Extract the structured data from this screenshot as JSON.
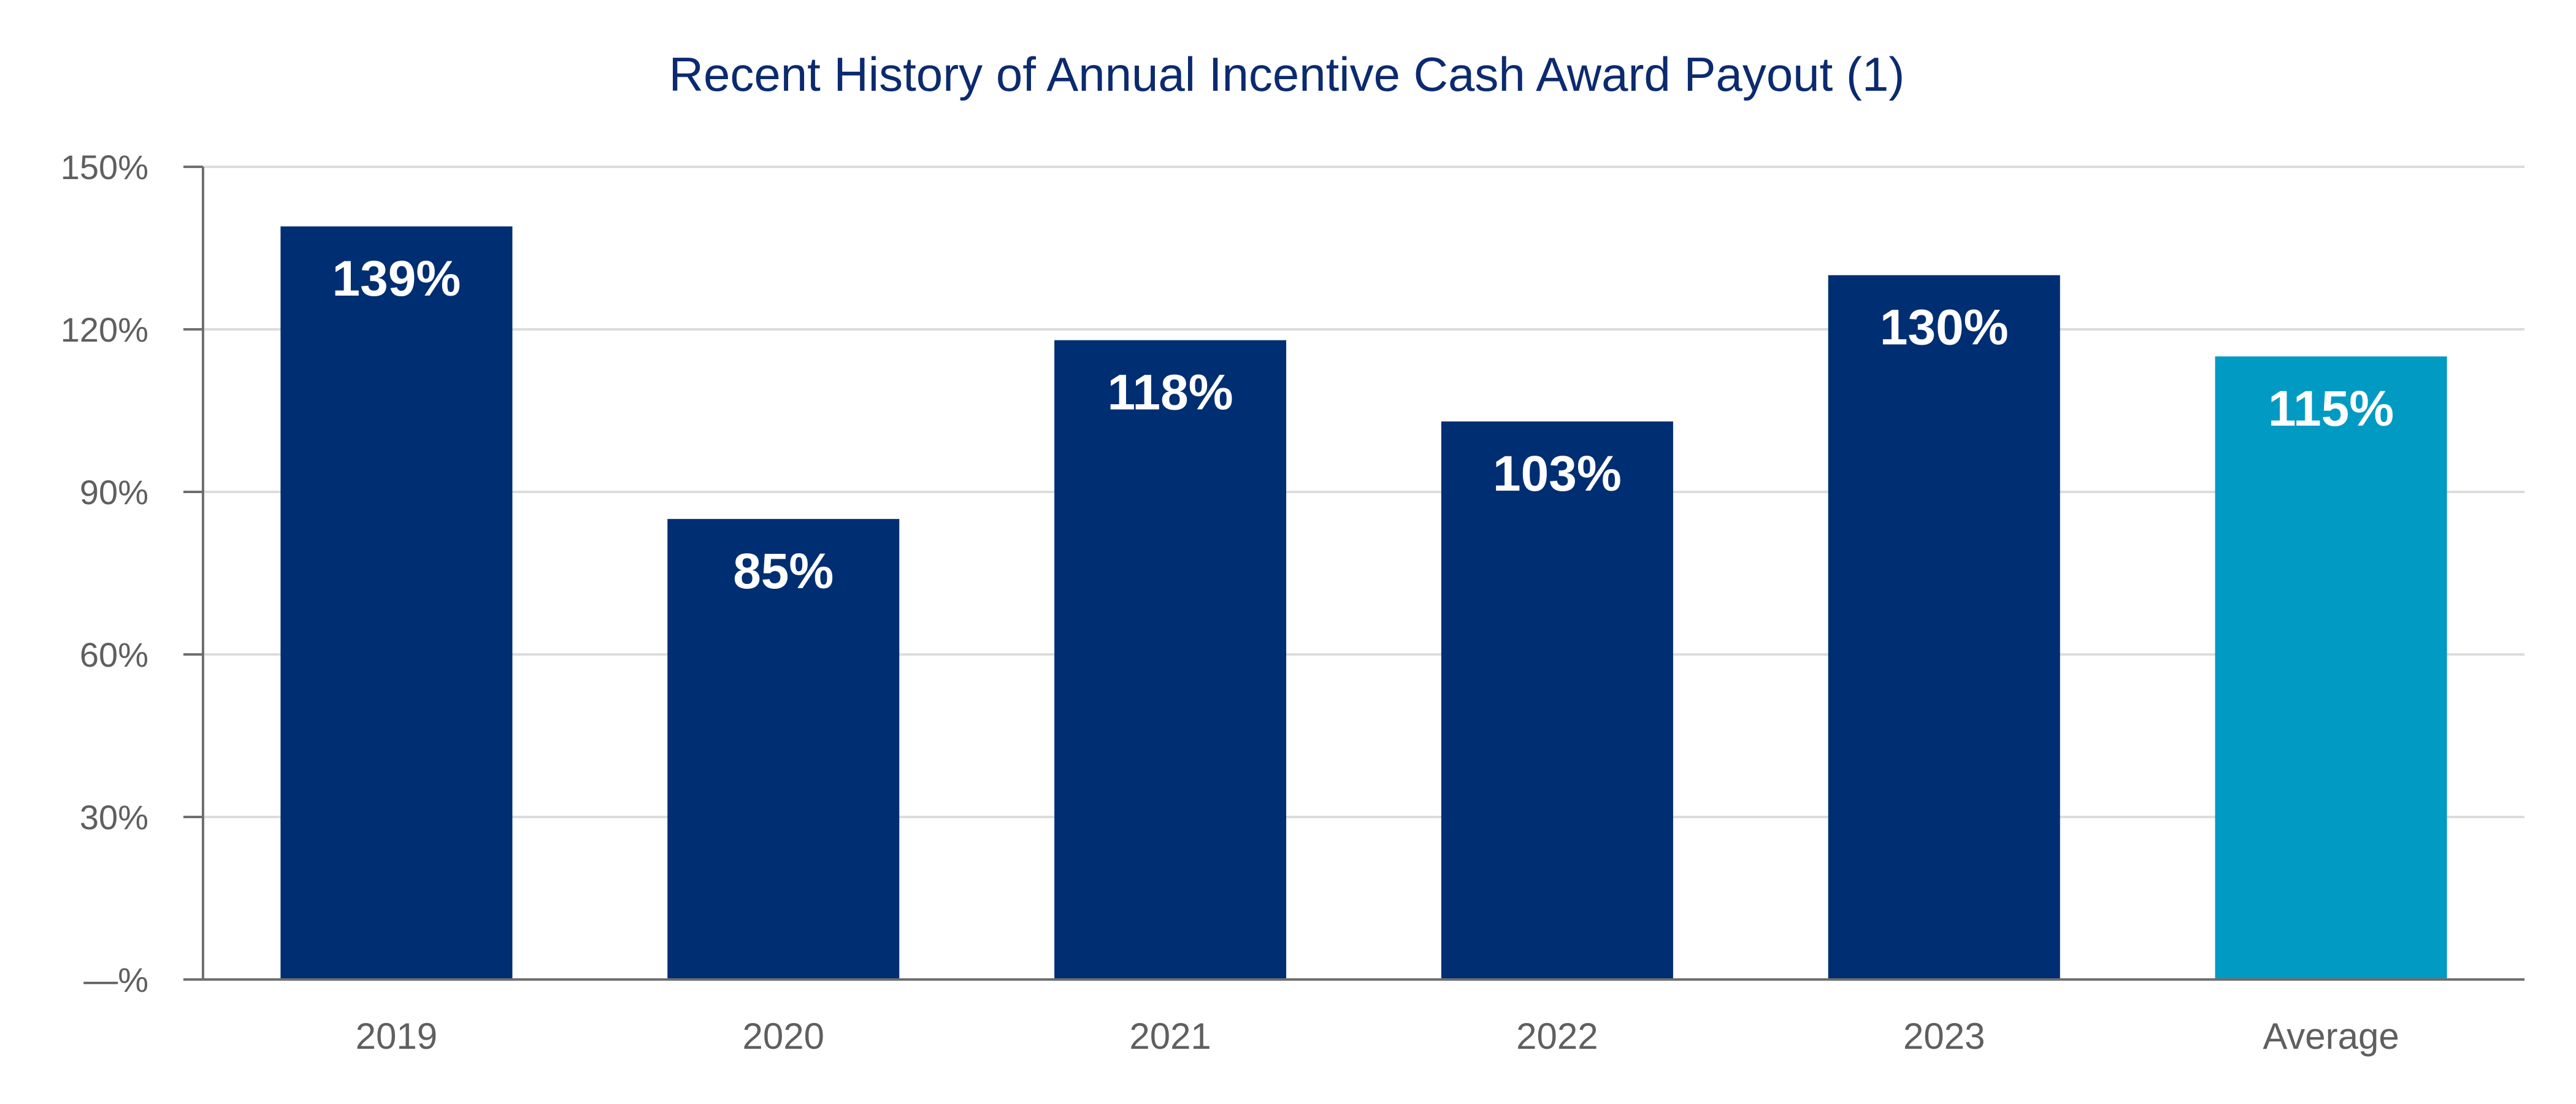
{
  "chart_data": {
    "type": "bar",
    "title": "Recent History of Annual Incentive Cash Award Payout (1)",
    "categories": [
      "2019",
      "2020",
      "2021",
      "2022",
      "2023",
      "Average"
    ],
    "values": [
      139,
      85,
      118,
      103,
      130,
      115
    ],
    "data_labels": [
      "139%",
      "85%",
      "118%",
      "103%",
      "130%",
      "115%"
    ],
    "bar_colors": [
      "#002e72",
      "#002e72",
      "#002e72",
      "#002e72",
      "#002e72",
      "#009ac3"
    ],
    "y_ticks": [
      0,
      30,
      60,
      90,
      120,
      150
    ],
    "y_tick_labels": [
      "—%",
      "30%",
      "60%",
      "90%",
      "120%",
      "150%"
    ],
    "ylim": [
      0,
      150
    ],
    "xlabel": "",
    "ylabel": "",
    "grid": true,
    "legend": "none"
  }
}
